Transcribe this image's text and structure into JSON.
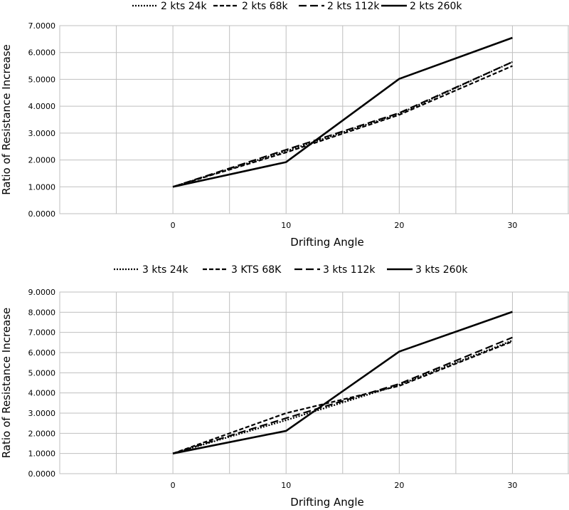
{
  "chart_data": [
    {
      "type": "line",
      "title": "",
      "xlabel": "Drifting Angle",
      "ylabel": "Ratio of Resistance Increase",
      "x": [
        0,
        10,
        20,
        30
      ],
      "xlim": [
        -10,
        35
      ],
      "ylim": [
        0,
        7
      ],
      "y_ticks": [
        "0.0000",
        "1.0000",
        "2.0000",
        "3.0000",
        "4.0000",
        "5.0000",
        "6.0000",
        "7.0000"
      ],
      "x_ticks": [
        "0",
        "10",
        "20",
        "30"
      ],
      "grid": true,
      "legend_position": "top",
      "series": [
        {
          "name": "2 kts 24k",
          "style": "dotted",
          "values": [
            1.0,
            2.33,
            3.72,
            5.65
          ]
        },
        {
          "name": "2 kts 68k",
          "style": "dashed",
          "values": [
            1.0,
            2.28,
            3.68,
            5.5
          ]
        },
        {
          "name": "2 kts 112k",
          "style": "long-dashed",
          "values": [
            1.0,
            2.38,
            3.75,
            5.65
          ]
        },
        {
          "name": "2 kts 260k",
          "style": "solid",
          "values": [
            1.0,
            1.92,
            5.02,
            6.55
          ]
        }
      ]
    },
    {
      "type": "line",
      "title": "",
      "xlabel": "Drifting Angle",
      "ylabel": "Ratio of Resistance Increase",
      "x": [
        0,
        10,
        20,
        30
      ],
      "xlim": [
        -10,
        35
      ],
      "ylim": [
        0,
        9
      ],
      "y_ticks": [
        "0.0000",
        "1.0000",
        "2.0000",
        "3.0000",
        "4.0000",
        "5.0000",
        "6.0000",
        "7.0000",
        "8.0000",
        "9.0000"
      ],
      "x_ticks": [
        "0",
        "10",
        "20",
        "30"
      ],
      "grid": true,
      "legend_position": "top",
      "series": [
        {
          "name": "3 kts 24k",
          "style": "dotted",
          "values": [
            1.0,
            2.65,
            4.4,
            6.6
          ]
        },
        {
          "name": "3 KTS 68K",
          "style": "dashed",
          "values": [
            1.0,
            3.0,
            4.35,
            6.55
          ]
        },
        {
          "name": "3 kts 112k",
          "style": "long-dashed",
          "values": [
            1.0,
            2.75,
            4.45,
            6.75
          ]
        },
        {
          "name": "3 kts 260k",
          "style": "solid",
          "values": [
            1.0,
            2.12,
            6.05,
            8.02
          ]
        }
      ]
    }
  ]
}
